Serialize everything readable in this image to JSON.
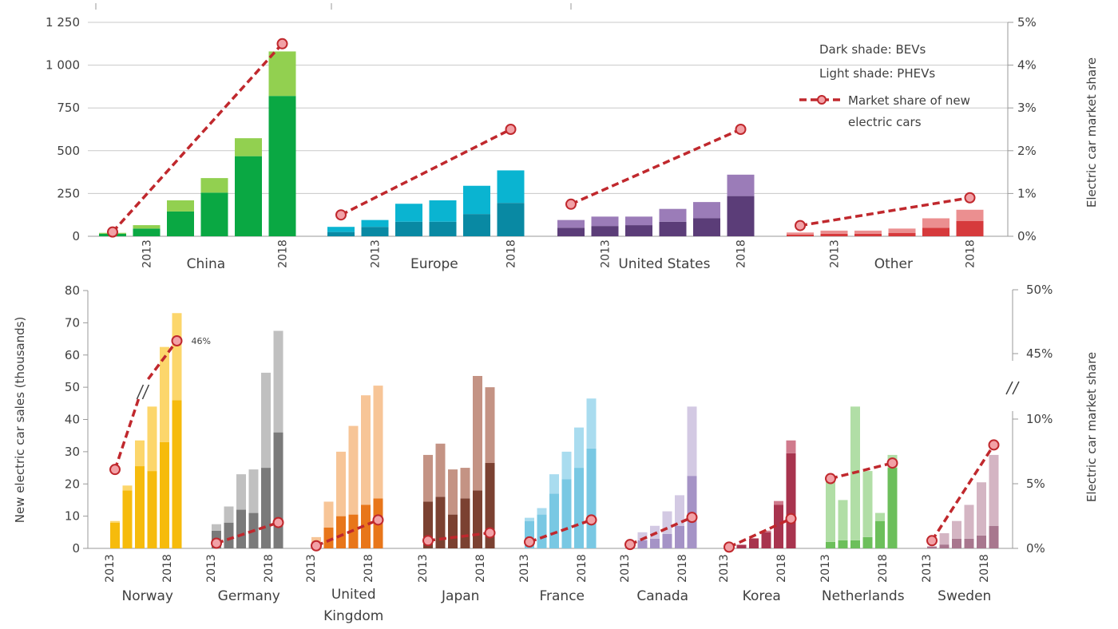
{
  "chart_data": [
    {
      "type": "bar",
      "stacked": true,
      "panel": "top",
      "ylabel_right": "Electric car market share",
      "ylim": [
        0,
        1250
      ],
      "yticks": [
        "0",
        "250",
        "500",
        "750",
        "1 000",
        "1 250"
      ],
      "y2lim": [
        0,
        5
      ],
      "y2ticks": [
        "0%",
        "1%",
        "2%",
        "3%",
        "4%",
        "5%"
      ],
      "year_labels": {
        "first": "2013",
        "last": "2018"
      },
      "legend": {
        "dark": "Dark shade: BEVs",
        "light": "Light shade: PHEVs",
        "line": "Market share of new",
        "line2": "electric cars"
      },
      "groups": [
        {
          "name": "China",
          "dark": "#0aa843",
          "light": "#92d050",
          "bev": [
            15,
            45,
            145,
            255,
            468,
            820
          ],
          "phev": [
            5,
            20,
            65,
            85,
            105,
            260
          ],
          "share": [
            0.1,
            4.5
          ]
        },
        {
          "name": "Europe",
          "dark": "#0989a3",
          "light": "#0ab4d1",
          "bev": [
            25,
            55,
            85,
            85,
            130,
            195
          ],
          "phev": [
            30,
            40,
            105,
            125,
            165,
            190
          ],
          "share": [
            0.5,
            2.5
          ]
        },
        {
          "name": "United States",
          "dark": "#5b3d78",
          "light": "#9b7cb8",
          "bev": [
            50,
            60,
            65,
            85,
            105,
            235
          ],
          "phev": [
            45,
            55,
            50,
            75,
            95,
            125
          ],
          "share": [
            0.75,
            2.5
          ]
        },
        {
          "name": "Other",
          "dark": "#d63a3c",
          "light": "#eb8f90",
          "bev": [
            10,
            15,
            15,
            20,
            50,
            90
          ],
          "phev": [
            12,
            18,
            18,
            25,
            55,
            65
          ],
          "share": [
            0.25,
            0.9
          ]
        }
      ]
    },
    {
      "type": "bar",
      "stacked": true,
      "panel": "bottom",
      "ylabel": "New electric car sales (thousands)",
      "ylabel_right": "Electric car market share",
      "ylim": [
        0,
        80
      ],
      "yticks": [
        "0",
        "10",
        "20",
        "30",
        "40",
        "50",
        "60",
        "70",
        "80"
      ],
      "y2ticks_lower": [
        "0%",
        "5%",
        "10%"
      ],
      "y2ticks_upper": [
        "45%",
        "50%"
      ],
      "year_labels": {
        "first": "2013",
        "last": "2018"
      },
      "annotation": "46%",
      "groups": [
        {
          "name": "Norway",
          "dark": "#f6bb0c",
          "light": "#fcd66b",
          "bev": [
            8,
            18,
            25.5,
            24,
            33,
            46
          ],
          "phev": [
            0.5,
            1.5,
            8,
            20,
            29.5,
            27
          ],
          "share": [
            6.1,
            46
          ]
        },
        {
          "name": "Germany",
          "dark": "#7a7a7a",
          "light": "#c0c0c0",
          "bev": [
            5.5,
            8,
            12,
            11,
            25,
            36
          ],
          "phev": [
            2,
            5,
            11,
            13.5,
            29.5,
            31.5
          ],
          "share": [
            0.4,
            2.0
          ]
        },
        {
          "name": "United Kingdom",
          "dark": "#e8761a",
          "light": "#f7c597",
          "bev": [
            1.5,
            6.5,
            10,
            10.5,
            13.5,
            15.5
          ],
          "phev": [
            2,
            8,
            20,
            27.5,
            34,
            35
          ],
          "share": [
            0.2,
            2.2
          ]
        },
        {
          "name": "Japan",
          "dark": "#7b4131",
          "light": "#c49384",
          "bev": [
            14.5,
            16,
            10.5,
            15.5,
            18,
            26.5
          ],
          "phev": [
            14.5,
            16.5,
            14,
            9.5,
            35.5,
            23.5
          ],
          "share": [
            0.6,
            1.2
          ]
        },
        {
          "name": "France",
          "dark": "#79c8e3",
          "light": "#a9dcef",
          "bev": [
            8.5,
            10.5,
            17,
            21.5,
            25,
            31
          ],
          "phev": [
            1,
            2,
            6,
            8.5,
            12.5,
            15.5
          ],
          "share": [
            0.5,
            2.2
          ]
        },
        {
          "name": "Canada",
          "dark": "#a593c6",
          "light": "#d3c9e3",
          "bev": [
            0.5,
            2.5,
            3,
            4.5,
            7,
            22.5
          ],
          "phev": [
            0.5,
            2.5,
            4,
            7,
            9.5,
            21.5
          ],
          "share": [
            0.3,
            2.4
          ]
        },
        {
          "name": "Korea",
          "dark": "#a8344e",
          "light": "#d07a8c",
          "bev": [
            0.5,
            1,
            3,
            5,
            13.5,
            29.5
          ],
          "phev": [
            0.2,
            0.2,
            0.2,
            0.5,
            1.2,
            4
          ],
          "share": [
            0.1,
            2.3
          ]
        },
        {
          "name": "Netherlands",
          "dark": "#6cbf5b",
          "light": "#b1dea6",
          "bev": [
            2,
            2.5,
            2.5,
            3.5,
            8.5,
            25
          ],
          "phev": [
            19,
            12.5,
            41.5,
            20.5,
            2.5,
            4
          ],
          "share": [
            5.4,
            6.6
          ]
        },
        {
          "name": "Sweden",
          "dark": "#a8778e",
          "light": "#d4b5c3",
          "bev": [
            0.5,
            1.2,
            3,
            3,
            4,
            7
          ],
          "phev": [
            0.2,
            3.5,
            5.5,
            10.5,
            16.5,
            22
          ],
          "share": [
            0.6,
            8.0
          ]
        }
      ]
    }
  ]
}
